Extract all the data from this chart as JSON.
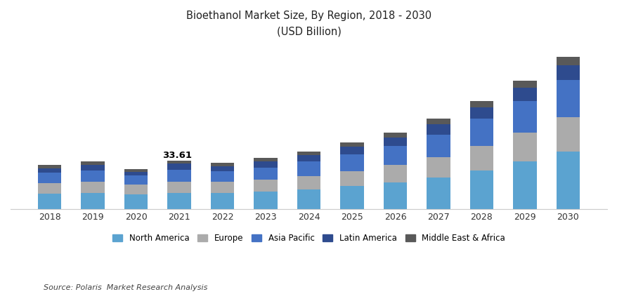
{
  "title_line1": "Bioethanol Market Size, By Region, 2018 - 2030",
  "title_line2": "(USD Billion)",
  "years": [
    2018,
    2019,
    2020,
    2021,
    2022,
    2023,
    2024,
    2025,
    2026,
    2027,
    2028,
    2029,
    2030
  ],
  "regions": [
    "North America",
    "Europe",
    "Asia Pacific",
    "Latin America",
    "Middle East & Africa"
  ],
  "colors": [
    "#5BA3D0",
    "#ABABAB",
    "#4472C4",
    "#2E4B8E",
    "#595959"
  ],
  "data": {
    "North America": [
      10.5,
      11.0,
      10.0,
      11.0,
      11.0,
      12.0,
      13.5,
      16.0,
      18.5,
      22.0,
      27.0,
      33.0,
      40.0
    ],
    "Europe": [
      7.5,
      8.0,
      7.0,
      8.0,
      8.0,
      8.5,
      9.5,
      10.5,
      12.0,
      14.0,
      17.0,
      20.5,
      24.0
    ],
    "Asia Pacific": [
      7.5,
      8.0,
      6.5,
      8.5,
      7.5,
      8.5,
      10.0,
      11.5,
      13.5,
      16.0,
      19.0,
      22.0,
      26.0
    ],
    "Latin America": [
      3.0,
      3.5,
      2.5,
      4.0,
      3.5,
      4.0,
      4.5,
      5.5,
      6.0,
      7.0,
      8.0,
      9.0,
      10.5
    ],
    "Middle East & Africa": [
      2.0,
      2.5,
      2.0,
      2.1,
      2.0,
      2.5,
      2.5,
      3.0,
      3.5,
      4.0,
      4.5,
      5.0,
      5.5
    ]
  },
  "annotation_year_idx": 3,
  "annotation_text": "33.61",
  "source": "Source: Polaris  Market Research Analysis",
  "background_color": "#FFFFFF",
  "ylim": [
    0,
    115
  ],
  "bar_width": 0.55
}
